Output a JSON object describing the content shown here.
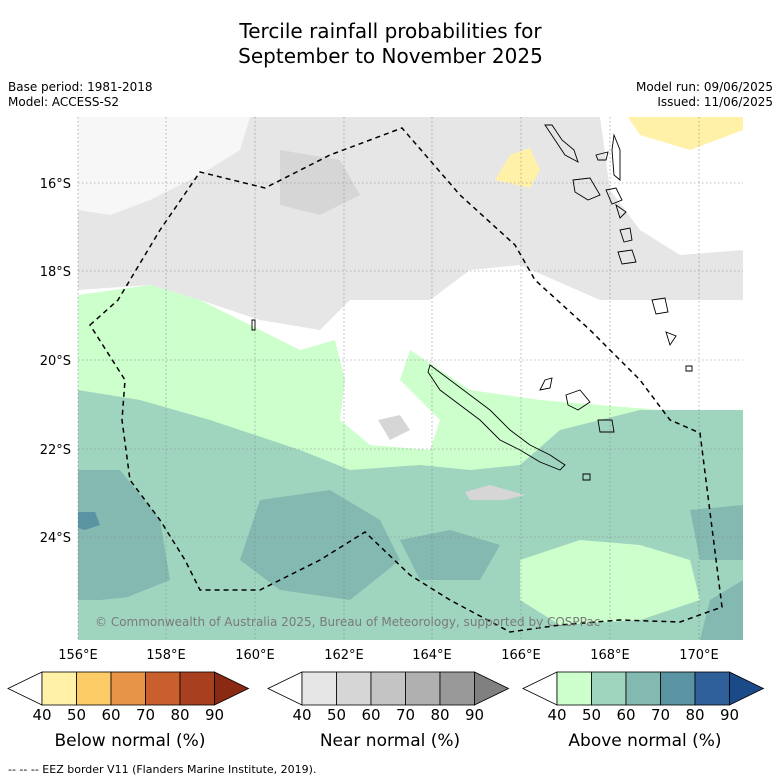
{
  "title": {
    "line1": "Tercile rainfall probabilities for",
    "line2": "September to November 2025"
  },
  "meta": {
    "base_period": "Base period: 1981-2018",
    "model": "Model: ACCESS-S2",
    "model_run": "Model run: 09/06/2025",
    "issued": "Issued: 11/06/2025"
  },
  "map": {
    "lon_labels": [
      "156°E",
      "158°E",
      "160°E",
      "162°E",
      "164°E",
      "166°E",
      "168°E",
      "170°E"
    ],
    "lat_labels": [
      "16°S",
      "18°S",
      "20°S",
      "22°S",
      "24°S"
    ],
    "copyright": "© Commonwealth of Australia 2025, Bureau of Meteorology, supported by COSPPac"
  },
  "colorbars": [
    {
      "label": "Below normal (%)",
      "ticks": [
        "40",
        "50",
        "60",
        "70",
        "80",
        "90"
      ],
      "colors": [
        "#ffffff",
        "#fff1a8",
        "#fdcc66",
        "#e89446",
        "#c85f2d",
        "#a8401f",
        "#8a2a12"
      ]
    },
    {
      "label": "Near normal (%)",
      "ticks": [
        "40",
        "50",
        "60",
        "70",
        "80",
        "90"
      ],
      "colors": [
        "#ffffff",
        "#e6e6e6",
        "#d6d6d6",
        "#c4c4c4",
        "#b0b0b0",
        "#999999",
        "#808080"
      ]
    },
    {
      "label": "Above normal (%)",
      "ticks": [
        "40",
        "50",
        "60",
        "70",
        "80",
        "90"
      ],
      "colors": [
        "#ffffff",
        "#ccffcc",
        "#9fd4bf",
        "#83b9b0",
        "#5a93a2",
        "#2f5f98",
        "#1a4a88"
      ]
    }
  ],
  "footnote": "-- -- -- EEZ border V11 (Flanders Marine Institute, 2019)."
}
